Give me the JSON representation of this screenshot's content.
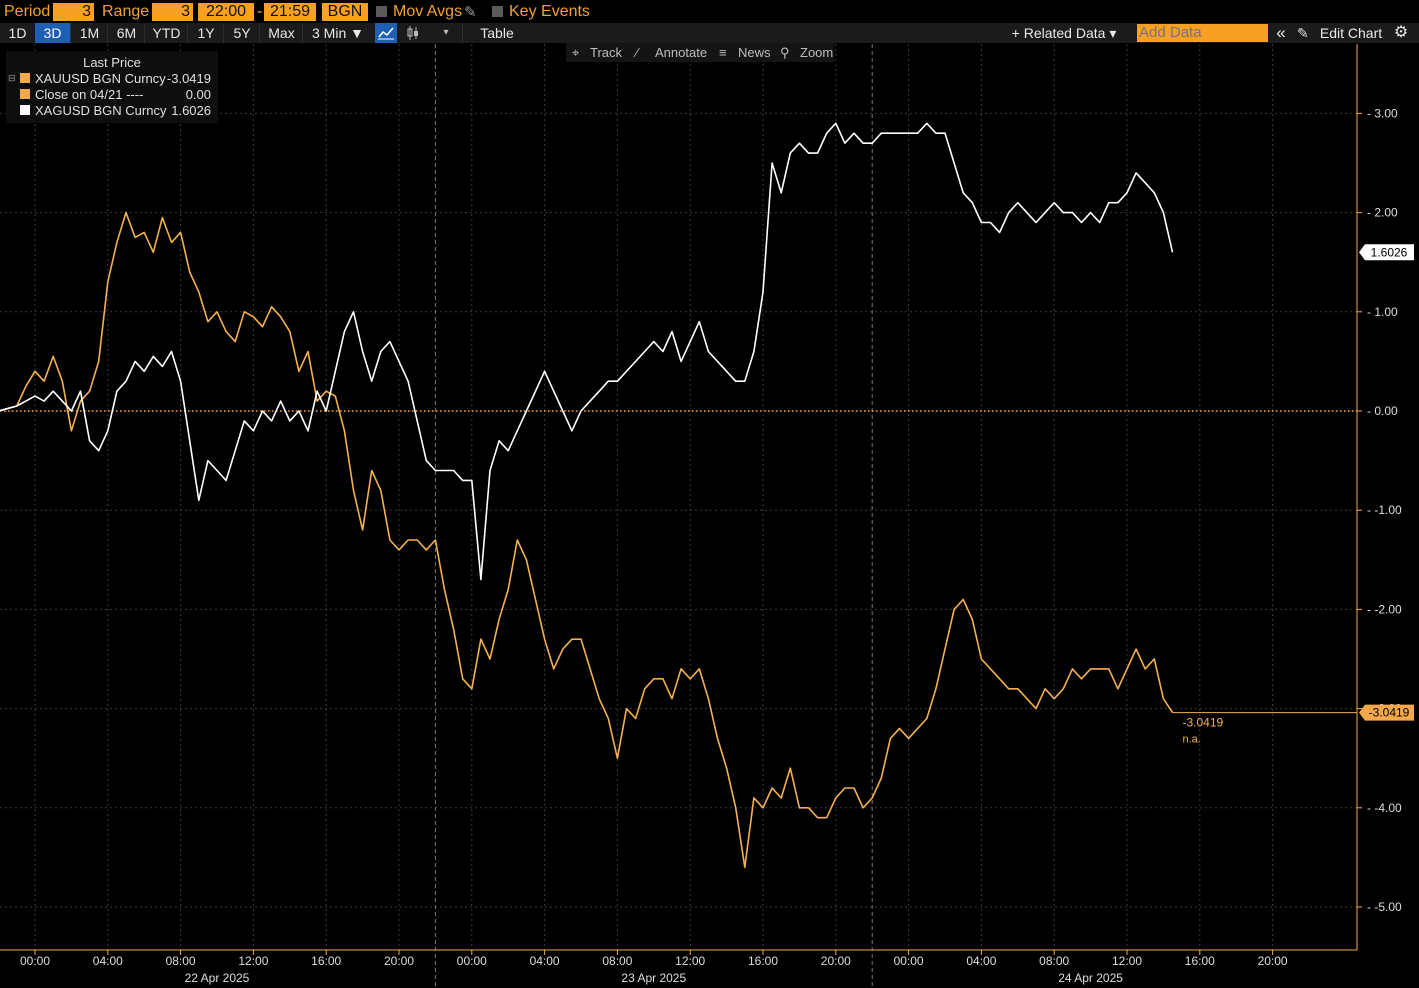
{
  "header": {
    "period_label": "Period",
    "period_value": "3",
    "range_label": "Range",
    "range_value": "3",
    "time_from": "22:00",
    "time_dash": "-",
    "time_to": "21:59",
    "source": "BGN",
    "mov_avgs": "Mov Avgs",
    "key_events": "Key Events"
  },
  "toolbar": {
    "ranges": [
      "1D",
      "3D",
      "1M",
      "6M",
      "YTD",
      "1Y",
      "5Y",
      "Max"
    ],
    "active_range": "3D",
    "interval": "3 Min ▼",
    "table": "Table",
    "related_data": "+ Related Data ▾",
    "add_data_placeholder": "Add Data",
    "collapse": "«",
    "edit_chart": "Edit Chart",
    "settings_icon": "gear-icon"
  },
  "annotation_bar": {
    "track": "Track",
    "annotate": "Annotate",
    "news": "News",
    "zoom": "Zoom"
  },
  "legend": {
    "header": "Last Price",
    "items": [
      {
        "name": "XAUUSD BGN Curncy",
        "value": "-3.0419",
        "color": "#f5a84a"
      },
      {
        "name": "Close on 04/21 ----",
        "value": "0.00",
        "color": "#f5a84a"
      },
      {
        "name": "XAGUSD BGN Curncy",
        "value": "1.6026",
        "color": "#ffffff"
      }
    ]
  },
  "colors": {
    "gold": "#f5b14f",
    "silver": "#ffffff",
    "accent": "#f7a024",
    "background": "#000000"
  },
  "chart_data": {
    "type": "line",
    "title": "",
    "xlabel": "",
    "ylabel": "",
    "ylim": [
      -5.4,
      3.7
    ],
    "yticks": [
      "3.00",
      "2.00",
      "1.00",
      "0.00",
      "-1.00",
      "-2.00",
      "-3.00",
      "-4.00",
      "-5.00"
    ],
    "ytick_values": [
      3,
      2,
      1,
      0,
      -1,
      -2,
      -3,
      -4,
      -5
    ],
    "xticks": [
      "00:00",
      "04:00",
      "08:00",
      "12:00",
      "16:00",
      "20:00",
      "00:00",
      "04:00",
      "08:00",
      "12:00",
      "16:00",
      "20:00",
      "00:00",
      "04:00",
      "08:00",
      "12:00",
      "16:00",
      "20:00"
    ],
    "xtick_hours": [
      0,
      4,
      8,
      12,
      16,
      20,
      24,
      28,
      32,
      36,
      40,
      44,
      48,
      52,
      56,
      60,
      64,
      68
    ],
    "day_labels": [
      {
        "label": "22 Apr 2025",
        "hour": 10
      },
      {
        "label": "23 Apr 2025",
        "hour": 34
      },
      {
        "label": "24 Apr 2025",
        "hour": 58
      }
    ],
    "day_separators_hours": [
      22,
      46
    ],
    "x_range_hours": [
      -2,
      70
    ],
    "grid": true,
    "legend_position": "top-left",
    "series": [
      {
        "name": "XAUUSD BGN Curncy",
        "color": "#f5b14f",
        "last_label": "-3.0419",
        "last_note": "n.a.",
        "points": [
          [
            -2,
            0
          ],
          [
            -1,
            0.05
          ],
          [
            -0.5,
            0.25
          ],
          [
            0,
            0.4
          ],
          [
            0.5,
            0.3
          ],
          [
            1,
            0.55
          ],
          [
            1.5,
            0.3
          ],
          [
            2,
            -0.2
          ],
          [
            2.5,
            0.1
          ],
          [
            3,
            0.2
          ],
          [
            3.5,
            0.5
          ],
          [
            4,
            1.3
          ],
          [
            4.5,
            1.7
          ],
          [
            5,
            2.0
          ],
          [
            5.5,
            1.75
          ],
          [
            6,
            1.8
          ],
          [
            6.5,
            1.6
          ],
          [
            7,
            1.95
          ],
          [
            7.5,
            1.7
          ],
          [
            8,
            1.8
          ],
          [
            8.5,
            1.4
          ],
          [
            9,
            1.2
          ],
          [
            9.5,
            0.9
          ],
          [
            10,
            1.0
          ],
          [
            10.5,
            0.8
          ],
          [
            11,
            0.7
          ],
          [
            11.5,
            1.0
          ],
          [
            12,
            0.95
          ],
          [
            12.5,
            0.85
          ],
          [
            13,
            1.05
          ],
          [
            13.5,
            0.95
          ],
          [
            14,
            0.8
          ],
          [
            14.5,
            0.4
          ],
          [
            15,
            0.6
          ],
          [
            15.5,
            0.1
          ],
          [
            16,
            0.2
          ],
          [
            16.5,
            0.15
          ],
          [
            17,
            -0.2
          ],
          [
            17.5,
            -0.8
          ],
          [
            18,
            -1.2
          ],
          [
            18.5,
            -0.6
          ],
          [
            19,
            -0.8
          ],
          [
            19.5,
            -1.3
          ],
          [
            20,
            -1.4
          ],
          [
            20.5,
            -1.3
          ],
          [
            21,
            -1.3
          ],
          [
            21.5,
            -1.4
          ],
          [
            22,
            -1.3
          ],
          [
            22.5,
            -1.8
          ],
          [
            23,
            -2.2
          ],
          [
            23.5,
            -2.7
          ],
          [
            24,
            -2.8
          ],
          [
            24.5,
            -2.3
          ],
          [
            25,
            -2.5
          ],
          [
            25.5,
            -2.1
          ],
          [
            26,
            -1.8
          ],
          [
            26.5,
            -1.3
          ],
          [
            27,
            -1.5
          ],
          [
            27.5,
            -1.9
          ],
          [
            28,
            -2.3
          ],
          [
            28.5,
            -2.6
          ],
          [
            29,
            -2.4
          ],
          [
            29.5,
            -2.3
          ],
          [
            30,
            -2.3
          ],
          [
            30.5,
            -2.6
          ],
          [
            31,
            -2.9
          ],
          [
            31.5,
            -3.1
          ],
          [
            32,
            -3.5
          ],
          [
            32.5,
            -3.0
          ],
          [
            33,
            -3.1
          ],
          [
            33.5,
            -2.8
          ],
          [
            34,
            -2.7
          ],
          [
            34.5,
            -2.7
          ],
          [
            35,
            -2.9
          ],
          [
            35.5,
            -2.6
          ],
          [
            36,
            -2.7
          ],
          [
            36.5,
            -2.6
          ],
          [
            37,
            -2.9
          ],
          [
            37.5,
            -3.3
          ],
          [
            38,
            -3.6
          ],
          [
            38.5,
            -4.0
          ],
          [
            39,
            -4.6
          ],
          [
            39.5,
            -3.9
          ],
          [
            40,
            -4.0
          ],
          [
            40.5,
            -3.8
          ],
          [
            41,
            -3.9
          ],
          [
            41.5,
            -3.6
          ],
          [
            42,
            -4.0
          ],
          [
            42.5,
            -4.0
          ],
          [
            43,
            -4.1
          ],
          [
            43.5,
            -4.1
          ],
          [
            44,
            -3.9
          ],
          [
            44.5,
            -3.8
          ],
          [
            45,
            -3.8
          ],
          [
            45.5,
            -4.0
          ],
          [
            46,
            -3.9
          ],
          [
            46.5,
            -3.7
          ],
          [
            47,
            -3.3
          ],
          [
            47.5,
            -3.2
          ],
          [
            48,
            -3.3
          ],
          [
            48.5,
            -3.2
          ],
          [
            49,
            -3.1
          ],
          [
            49.5,
            -2.8
          ],
          [
            50,
            -2.4
          ],
          [
            50.5,
            -2.0
          ],
          [
            51,
            -1.9
          ],
          [
            51.5,
            -2.1
          ],
          [
            52,
            -2.5
          ],
          [
            52.5,
            -2.6
          ],
          [
            53,
            -2.7
          ],
          [
            53.5,
            -2.8
          ],
          [
            54,
            -2.8
          ],
          [
            54.5,
            -2.9
          ],
          [
            55,
            -3.0
          ],
          [
            55.5,
            -2.8
          ],
          [
            56,
            -2.9
          ],
          [
            56.5,
            -2.8
          ],
          [
            57,
            -2.6
          ],
          [
            57.5,
            -2.7
          ],
          [
            58,
            -2.6
          ],
          [
            58.5,
            -2.6
          ],
          [
            59,
            -2.6
          ],
          [
            59.5,
            -2.8
          ],
          [
            60,
            -2.6
          ],
          [
            60.5,
            -2.4
          ],
          [
            61,
            -2.6
          ],
          [
            61.5,
            -2.5
          ],
          [
            62,
            -2.9
          ],
          [
            62.5,
            -3.04
          ]
        ]
      },
      {
        "name": "Close on 04/21 ----",
        "color": "#f5a84a",
        "value": 0
      },
      {
        "name": "XAGUSD BGN Curncy",
        "color": "#ffffff",
        "last_label": "1.6026",
        "points": [
          [
            -2,
            0
          ],
          [
            -1,
            0.05
          ],
          [
            0,
            0.15
          ],
          [
            0.5,
            0.1
          ],
          [
            1,
            0.2
          ],
          [
            1.5,
            0.1
          ],
          [
            2,
            0.0
          ],
          [
            2.5,
            0.2
          ],
          [
            3,
            -0.3
          ],
          [
            3.5,
            -0.4
          ],
          [
            4,
            -0.2
          ],
          [
            4.5,
            0.2
          ],
          [
            5,
            0.3
          ],
          [
            5.5,
            0.5
          ],
          [
            6,
            0.4
          ],
          [
            6.5,
            0.55
          ],
          [
            7,
            0.45
          ],
          [
            7.5,
            0.6
          ],
          [
            8,
            0.3
          ],
          [
            8.5,
            -0.3
          ],
          [
            9,
            -0.9
          ],
          [
            9.5,
            -0.5
          ],
          [
            10,
            -0.6
          ],
          [
            10.5,
            -0.7
          ],
          [
            11,
            -0.4
          ],
          [
            11.5,
            -0.1
          ],
          [
            12,
            -0.2
          ],
          [
            12.5,
            0.0
          ],
          [
            13,
            -0.1
          ],
          [
            13.5,
            0.1
          ],
          [
            14,
            -0.1
          ],
          [
            14.5,
            0.0
          ],
          [
            15,
            -0.2
          ],
          [
            15.5,
            0.2
          ],
          [
            16,
            0.0
          ],
          [
            16.5,
            0.4
          ],
          [
            17,
            0.8
          ],
          [
            17.5,
            1.0
          ],
          [
            18,
            0.6
          ],
          [
            18.5,
            0.3
          ],
          [
            19,
            0.6
          ],
          [
            19.5,
            0.7
          ],
          [
            20,
            0.5
          ],
          [
            20.5,
            0.3
          ],
          [
            21,
            -0.1
          ],
          [
            21.5,
            -0.5
          ],
          [
            22,
            -0.6
          ],
          [
            22.5,
            -0.6
          ],
          [
            23,
            -0.6
          ],
          [
            23.5,
            -0.7
          ],
          [
            24,
            -0.7
          ],
          [
            24.5,
            -1.7
          ],
          [
            25,
            -0.6
          ],
          [
            25.5,
            -0.3
          ],
          [
            26,
            -0.4
          ],
          [
            26.5,
            -0.2
          ],
          [
            27,
            0.0
          ],
          [
            27.5,
            0.2
          ],
          [
            28,
            0.4
          ],
          [
            28.5,
            0.2
          ],
          [
            29,
            0.0
          ],
          [
            29.5,
            -0.2
          ],
          [
            30,
            0.0
          ],
          [
            30.5,
            0.1
          ],
          [
            31,
            0.2
          ],
          [
            31.5,
            0.3
          ],
          [
            32,
            0.3
          ],
          [
            32.5,
            0.4
          ],
          [
            33,
            0.5
          ],
          [
            33.5,
            0.6
          ],
          [
            34,
            0.7
          ],
          [
            34.5,
            0.6
          ],
          [
            35,
            0.8
          ],
          [
            35.5,
            0.5
          ],
          [
            36,
            0.7
          ],
          [
            36.5,
            0.9
          ],
          [
            37,
            0.6
          ],
          [
            37.5,
            0.5
          ],
          [
            38,
            0.4
          ],
          [
            38.5,
            0.3
          ],
          [
            39,
            0.3
          ],
          [
            39.5,
            0.6
          ],
          [
            40,
            1.2
          ],
          [
            40.5,
            2.5
          ],
          [
            41,
            2.2
          ],
          [
            41.5,
            2.6
          ],
          [
            42,
            2.7
          ],
          [
            42.5,
            2.6
          ],
          [
            43,
            2.6
          ],
          [
            43.5,
            2.8
          ],
          [
            44,
            2.9
          ],
          [
            44.5,
            2.7
          ],
          [
            45,
            2.8
          ],
          [
            45.5,
            2.7
          ],
          [
            46,
            2.7
          ],
          [
            46.5,
            2.8
          ],
          [
            47,
            2.8
          ],
          [
            47.5,
            2.8
          ],
          [
            48,
            2.8
          ],
          [
            48.5,
            2.8
          ],
          [
            49,
            2.9
          ],
          [
            49.5,
            2.8
          ],
          [
            50,
            2.8
          ],
          [
            50.5,
            2.5
          ],
          [
            51,
            2.2
          ],
          [
            51.5,
            2.1
          ],
          [
            52,
            1.9
          ],
          [
            52.5,
            1.9
          ],
          [
            53,
            1.8
          ],
          [
            53.5,
            2.0
          ],
          [
            54,
            2.1
          ],
          [
            54.5,
            2.0
          ],
          [
            55,
            1.9
          ],
          [
            55.5,
            2.0
          ],
          [
            56,
            2.1
          ],
          [
            56.5,
            2.0
          ],
          [
            57,
            2.0
          ],
          [
            57.5,
            1.9
          ],
          [
            58,
            2.0
          ],
          [
            58.5,
            1.9
          ],
          [
            59,
            2.1
          ],
          [
            59.5,
            2.1
          ],
          [
            60,
            2.2
          ],
          [
            60.5,
            2.4
          ],
          [
            61,
            2.3
          ],
          [
            61.5,
            2.2
          ],
          [
            62,
            2.0
          ],
          [
            62.5,
            1.6
          ]
        ]
      }
    ]
  }
}
